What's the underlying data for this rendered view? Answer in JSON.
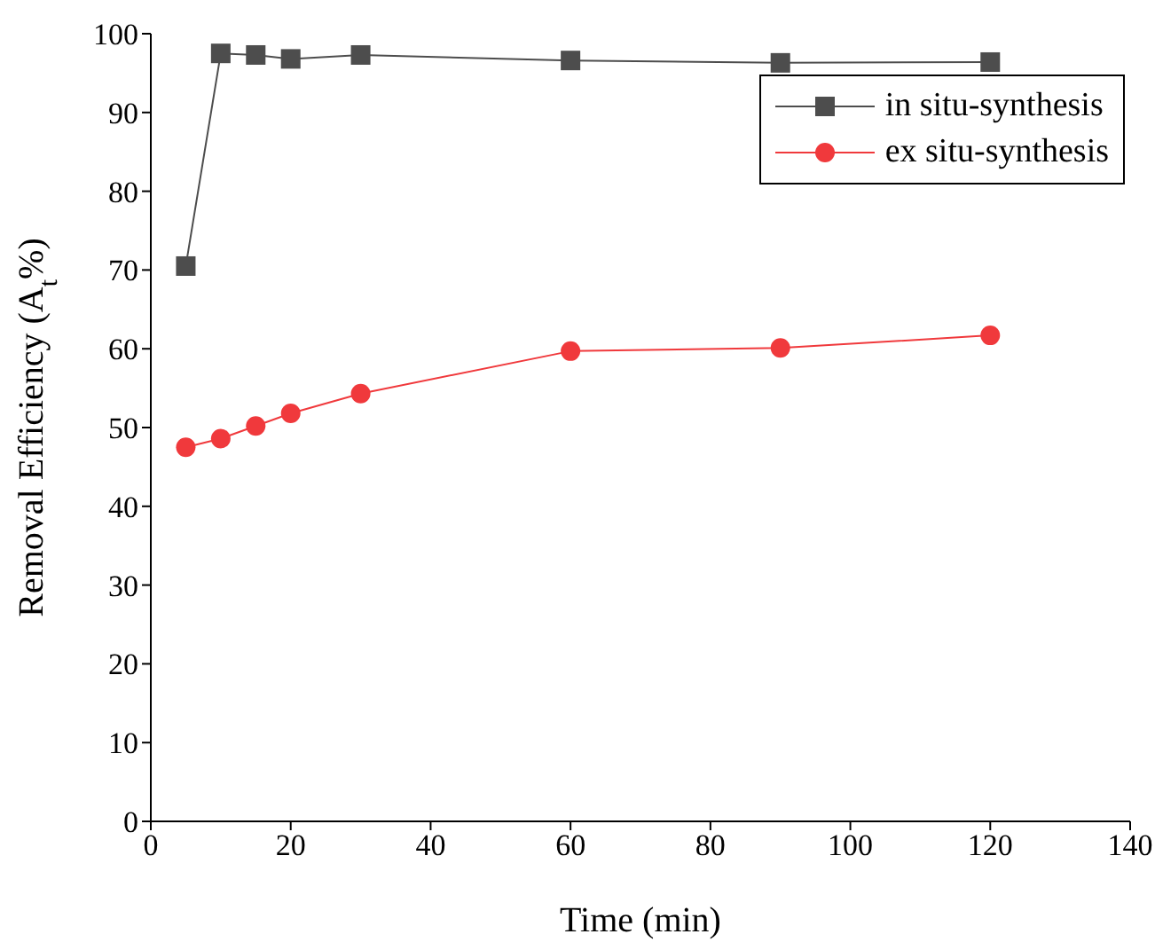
{
  "chart_data": {
    "type": "line",
    "xlabel": "Time (min)",
    "ylabel": "Removal Efficiency (A$_{t}$%)",
    "x": [
      5,
      10,
      15,
      20,
      30,
      60,
      90,
      120
    ],
    "series": [
      {
        "name": "in situ-synthesis",
        "color": "#4d4d4d",
        "marker": "square",
        "values": [
          70.5,
          97.5,
          97.3,
          96.8,
          97.3,
          96.6,
          96.3,
          96.4
        ]
      },
      {
        "name": "ex situ-synthesis",
        "color": "#f0393c",
        "marker": "circle",
        "values": [
          47.5,
          48.6,
          50.2,
          51.8,
          54.3,
          59.7,
          60.1,
          61.7
        ]
      }
    ],
    "xlim": [
      0,
      140
    ],
    "xticks": [
      0,
      20,
      40,
      60,
      80,
      100,
      120,
      140
    ],
    "ylim": [
      0,
      100
    ],
    "yticks": [
      0,
      10,
      20,
      30,
      40,
      50,
      60,
      70,
      80,
      90,
      100
    ],
    "grid": false,
    "legend": "top right",
    "line_style": "solid"
  }
}
